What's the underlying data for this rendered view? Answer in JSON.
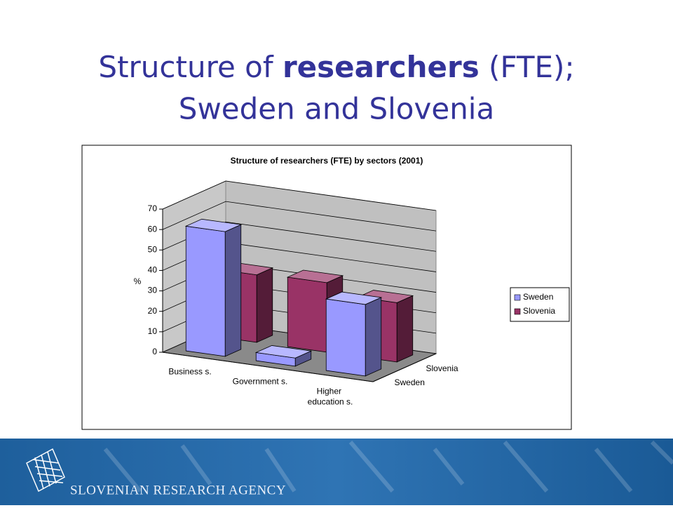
{
  "title": {
    "part1": "Structure of ",
    "bold": "researchers",
    "part2": " (FTE);",
    "line2": "Sweden and Slovenia"
  },
  "chart_data": {
    "type": "bar3d",
    "title": "Structure of researchers (FTE) by sectors (2001)",
    "y_label": "%",
    "categories": [
      "Business s.",
      "Government s.",
      "Higher education s."
    ],
    "series": [
      {
        "name": "Sweden",
        "color": "#9999ff",
        "values": [
          61,
          4,
          35
        ]
      },
      {
        "name": "Slovenia",
        "color": "#993366",
        "values": [
          33,
          34,
          29
        ]
      }
    ],
    "ylim": [
      0,
      70
    ],
    "yticks": [
      0,
      10,
      20,
      30,
      40,
      50,
      60,
      70
    ],
    "grid": true,
    "legend": "right"
  },
  "footer": {
    "agency": "SLOVENIAN RESEARCH AGENCY"
  }
}
